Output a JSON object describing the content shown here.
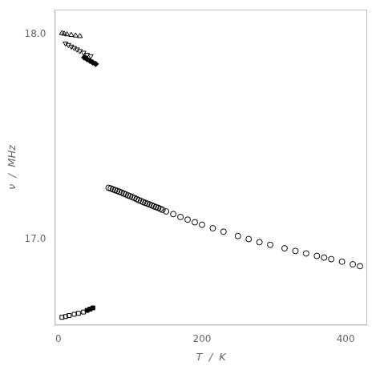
{
  "chart_data": {
    "type": "scatter",
    "xlabel": "T  /  K",
    "ylabel": "ν  /  MHz",
    "xlim": [
      -5,
      430
    ],
    "ylim": [
      16.58,
      18.12
    ],
    "xticks": [
      0,
      200,
      400
    ],
    "yticks": [
      {
        "value": 17.0,
        "label": "17.0"
      },
      {
        "value": 18.0,
        "label": "18.0"
      }
    ],
    "grid": false,
    "series": [
      {
        "color": "#000000",
        "marker": "open-triangle-up",
        "x": [
          5,
          8,
          12,
          18,
          24,
          30
        ],
        "values": [
          18.005,
          18.002,
          17.999,
          17.996,
          17.993,
          17.99
        ]
      },
      {
        "color": "#000000",
        "marker": "open-triangle-down",
        "x": [
          10,
          14,
          18,
          22,
          26,
          30,
          35,
          40,
          45
        ],
        "values": [
          17.955,
          17.948,
          17.94,
          17.933,
          17.926,
          17.918,
          17.91,
          17.9,
          17.893
        ]
      },
      {
        "color": "#000000",
        "marker": "filled-diamond",
        "x": [
          36,
          40,
          44,
          48,
          52
        ],
        "values": [
          17.886,
          17.878,
          17.87,
          17.862,
          17.855
        ]
      },
      {
        "color": "#000000",
        "marker": "open-circle",
        "x": [
          70,
          73,
          76,
          79,
          82,
          85,
          88,
          91,
          94,
          97,
          100,
          103,
          106,
          109,
          112,
          115,
          118,
          121,
          124,
          127,
          130,
          133,
          136,
          139,
          142,
          145
        ],
        "values": [
          17.25,
          17.247,
          17.243,
          17.239,
          17.235,
          17.231,
          17.227,
          17.222,
          17.218,
          17.213,
          17.209,
          17.205,
          17.2,
          17.195,
          17.19,
          17.186,
          17.181,
          17.177,
          17.173,
          17.169,
          17.165,
          17.16,
          17.156,
          17.152,
          17.148,
          17.143
        ]
      },
      {
        "color": "#000000",
        "marker": "open-circle",
        "x": [
          150,
          160,
          170,
          180,
          190,
          200,
          215,
          230,
          250,
          265,
          280,
          295,
          315,
          330,
          345,
          360,
          370,
          380,
          395,
          410,
          420
        ],
        "values": [
          17.135,
          17.122,
          17.108,
          17.095,
          17.082,
          17.07,
          17.053,
          17.036,
          17.015,
          17.0,
          16.985,
          16.972,
          16.955,
          16.942,
          16.93,
          16.918,
          16.91,
          16.902,
          16.89,
          16.877,
          16.868
        ]
      },
      {
        "color": "#000000",
        "marker": "open-square",
        "x": [
          5,
          10,
          15,
          22,
          28,
          35
        ],
        "values": [
          16.618,
          16.622,
          16.627,
          16.633,
          16.638,
          16.644
        ]
      },
      {
        "color": "#000000",
        "marker": "filled-square",
        "x": [
          40,
          44,
          48
        ],
        "values": [
          16.652,
          16.658,
          16.664
        ]
      }
    ]
  }
}
